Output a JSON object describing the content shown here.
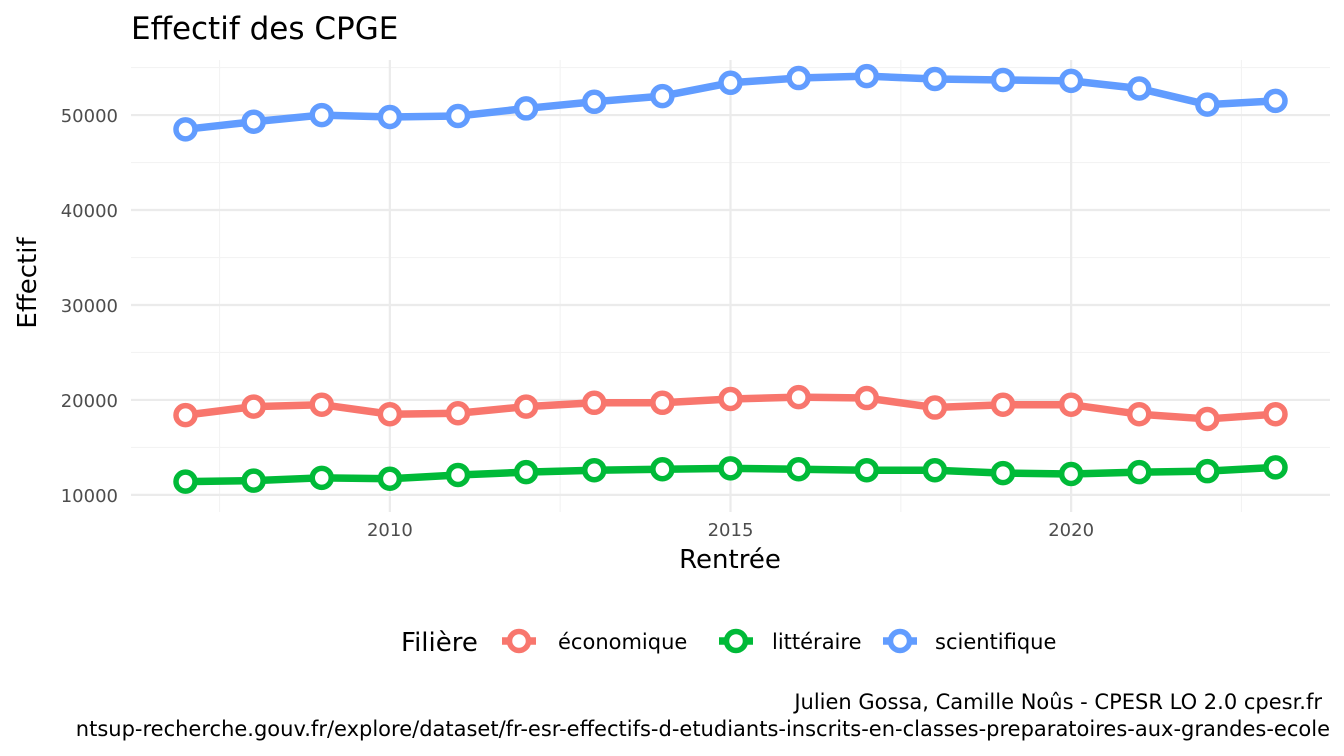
{
  "chart_data": {
    "type": "line",
    "title": "Effectif des CPGE",
    "xlabel": "Rentrée",
    "ylabel": "Effectif",
    "x": [
      2007,
      2008,
      2009,
      2010,
      2011,
      2012,
      2013,
      2014,
      2015,
      2016,
      2017,
      2018,
      2019,
      2020,
      2021,
      2022,
      2023
    ],
    "xlim": [
      2006.2,
      2023.8
    ],
    "ylim": [
      8200,
      55800
    ],
    "x_ticks": [
      2010,
      2015,
      2020
    ],
    "y_ticks": [
      10000,
      20000,
      30000,
      40000,
      50000
    ],
    "x_tick_labels": [
      "2010",
      "2015",
      "2020"
    ],
    "y_tick_labels": [
      "10000",
      "20000",
      "30000",
      "40000",
      "50000"
    ],
    "grid": true,
    "legend_position": "bottom",
    "legend_title": "Filière",
    "series": [
      {
        "name": "économique",
        "color": "#F8766D",
        "values": [
          18400,
          19300,
          19500,
          18500,
          18600,
          19300,
          19700,
          19700,
          20100,
          20300,
          20200,
          19200,
          19500,
          19500,
          18500,
          18000,
          18500
        ]
      },
      {
        "name": "littéraire",
        "color": "#00BA38",
        "values": [
          11400,
          11500,
          11800,
          11700,
          12100,
          12400,
          12600,
          12700,
          12800,
          12700,
          12600,
          12600,
          12300,
          12200,
          12400,
          12500,
          12900
        ]
      },
      {
        "name": "scientifique",
        "color": "#619CFF",
        "values": [
          48500,
          49300,
          50000,
          49800,
          49900,
          50700,
          51400,
          52000,
          53400,
          53900,
          54100,
          53800,
          53700,
          53600,
          52800,
          51100,
          51500
        ]
      }
    ]
  },
  "caption": {
    "line1": "Julien Gossa, Camille Noûs - CPESR LO 2.0 cpesr.fr",
    "line2": "ntsup-recherche.gouv.fr/explore/dataset/fr-esr-effectifs-d-etudiants-inscrits-en-classes-preparatoires-aux-grandes-ecole"
  }
}
